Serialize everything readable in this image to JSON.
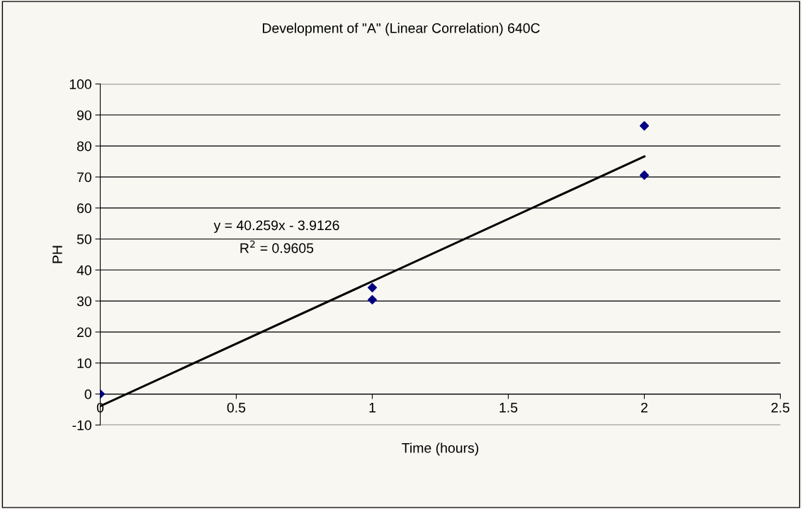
{
  "chart_data": {
    "type": "scatter",
    "title": "Development of \"A\" (Linear Correlation) 640C",
    "xlabel": "Time (hours)",
    "ylabel": "PH",
    "series": [
      {
        "color": "#000080",
        "marker": "diamond",
        "x": [
          0,
          1,
          1,
          2,
          2
        ],
        "values": [
          0,
          34.3,
          30.4,
          86.5,
          70.6
        ]
      },
      {
        "type": "line",
        "color": "#000000",
        "marker": "none",
        "line_style": "solid",
        "x": [
          0,
          2
        ],
        "values": [
          -3.9,
          76.6
        ]
      }
    ],
    "xlim": [
      0,
      2.5
    ],
    "xticks": [
      0,
      0.5,
      1,
      1.5,
      2,
      2.5
    ],
    "ylim": [
      -10,
      100
    ],
    "yticks": [
      -10,
      0,
      10,
      20,
      30,
      40,
      50,
      60,
      70,
      80,
      90,
      100
    ],
    "grid": "y",
    "legend": false,
    "annotations": [
      "y = 40.259x - 3.9126",
      "R$^{2}$ = 0.9605"
    ]
  }
}
